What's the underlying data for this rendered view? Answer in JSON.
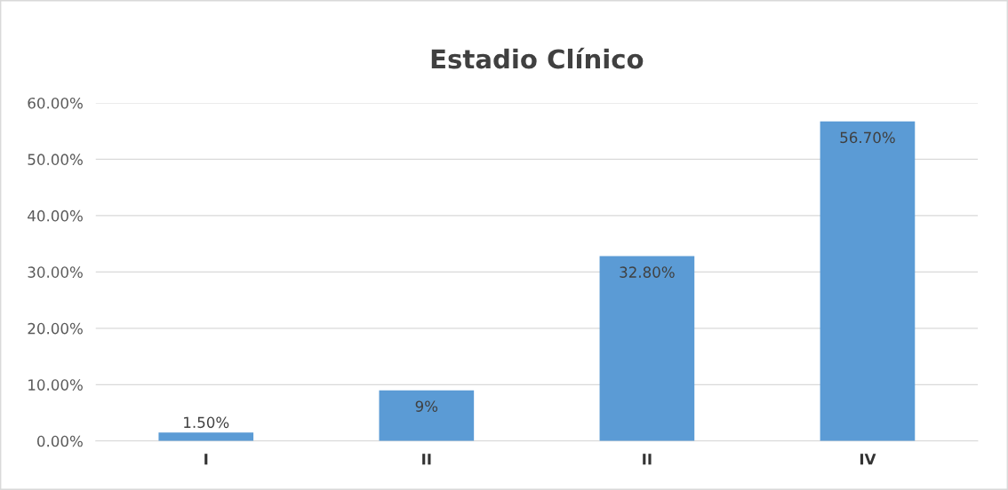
{
  "chart_data": {
    "type": "bar",
    "title": "Estadio Clínico",
    "categories": [
      "I",
      "II",
      "II",
      "IV"
    ],
    "values": [
      1.5,
      9,
      32.8,
      56.7
    ],
    "value_labels": [
      "1.50%",
      "9%",
      "32.80%",
      "56.70%"
    ],
    "color": "#5b9bd5",
    "ylim": [
      0,
      60
    ],
    "yticks": [
      {
        "value": 0,
        "label": "0.00%"
      },
      {
        "value": 10,
        "label": "10.00%"
      },
      {
        "value": 20,
        "label": "20.00%"
      },
      {
        "value": 30,
        "label": "30.00%"
      },
      {
        "value": 40,
        "label": "40.00%"
      },
      {
        "value": 50,
        "label": "50.00%"
      },
      {
        "value": 60,
        "label": "60.00%"
      }
    ],
    "grid": "y"
  }
}
